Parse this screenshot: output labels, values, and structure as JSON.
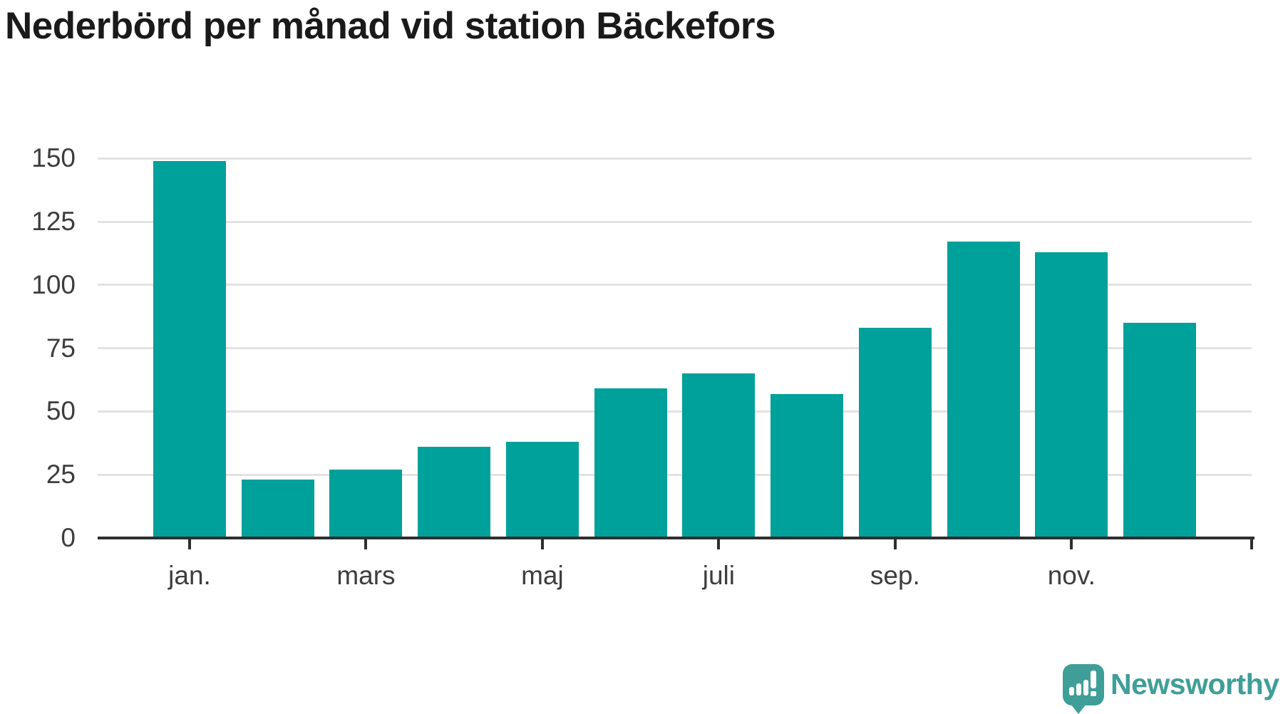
{
  "title": "Nederbörd per månad vid station Bäckefors",
  "logo": {
    "text": "Newsworthy",
    "icon": "newsworthy-speech-bubble-bar-chart-icon"
  },
  "colors": {
    "bar": "#00a09b",
    "grid": "#e2e2e2",
    "axis": "#2e2e2e",
    "tick_label": "#3d3d3d",
    "title": "#1a1a1a",
    "logo": "#3f9e98"
  },
  "chart_data": {
    "type": "bar",
    "title": "Nederbörd per månad vid station Bäckefors",
    "categories": [
      "jan.",
      "",
      "mars",
      "",
      "maj",
      "",
      "juli",
      "",
      "sep.",
      "",
      "nov.",
      ""
    ],
    "values": [
      149,
      23,
      27,
      36,
      38,
      59,
      65,
      57,
      83,
      117,
      113,
      85
    ],
    "x_tick_labels": [
      "jan.",
      "mars",
      "maj",
      "juli",
      "sep.",
      "nov."
    ],
    "x_tick_indices": [
      0,
      2,
      4,
      6,
      8,
      10
    ],
    "yticks": [
      0,
      25,
      50,
      75,
      100,
      125,
      150
    ],
    "ylim": [
      0,
      155
    ],
    "xlabel": "",
    "ylabel": "",
    "grid": "horizontal",
    "legend": "none",
    "bar_color": "#00a09b"
  }
}
